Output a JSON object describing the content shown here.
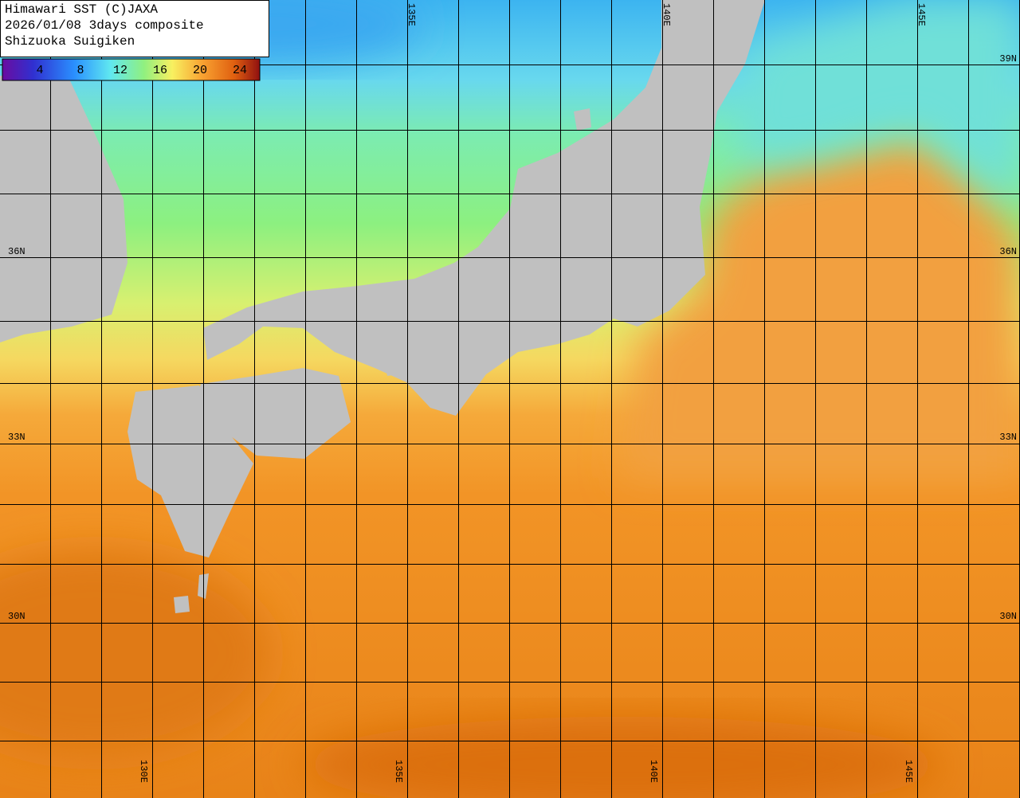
{
  "header": {
    "lines": [
      "Himawari SST (C)JAXA",
      "2026/01/08 3days composite",
      "Shizuoka Suigiken"
    ]
  },
  "colorbar": {
    "labels": [
      4,
      8,
      12,
      16,
      20,
      24
    ]
  },
  "longitude_labels": {
    "top": [
      "135E",
      "140E",
      "145E"
    ],
    "bottom": [
      "130E",
      "135E",
      "140E",
      "145E"
    ]
  },
  "latitude_labels": {
    "left": [
      "36N",
      "33N",
      "30N"
    ],
    "right": [
      "39N",
      "36N",
      "33N",
      "30N"
    ]
  }
}
